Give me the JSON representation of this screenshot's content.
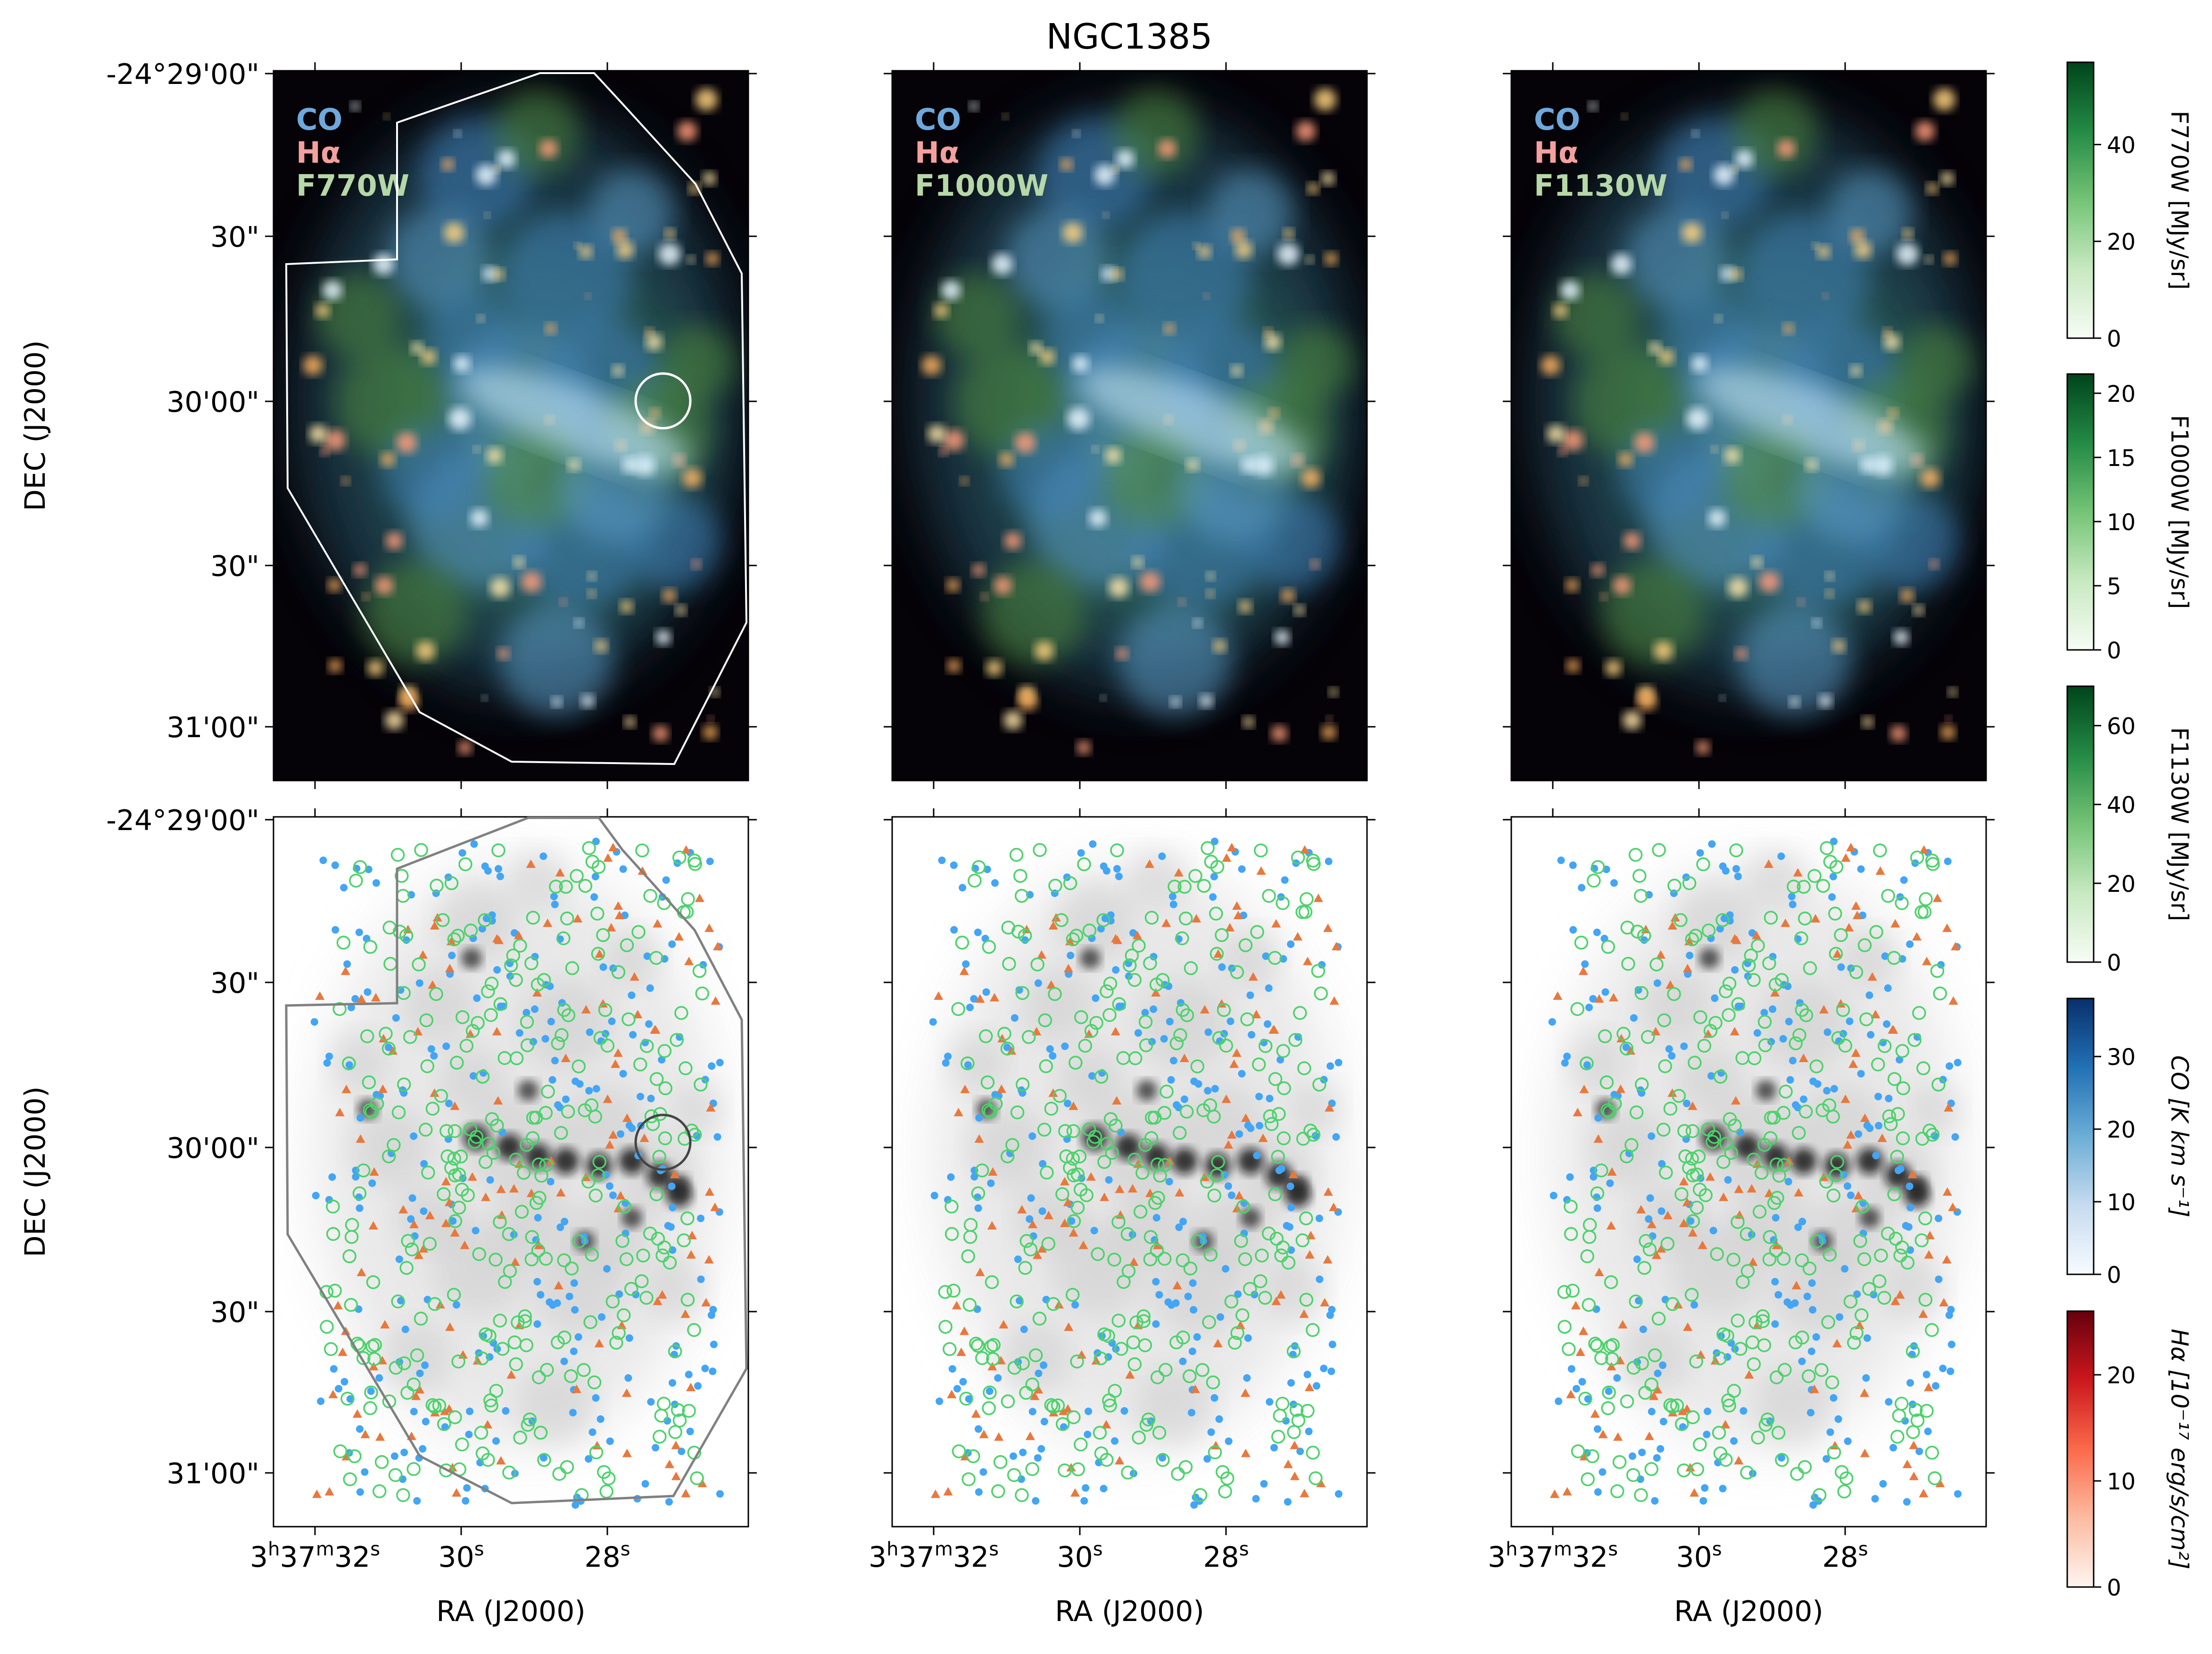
{
  "figure": {
    "title": "NGC1385"
  },
  "rgb_panels": [
    {
      "labels": [
        "CO",
        "Hα",
        "F770W"
      ]
    },
    {
      "labels": [
        "CO",
        "Hα",
        "F1000W"
      ]
    },
    {
      "labels": [
        "CO",
        "Hα",
        "F1130W"
      ]
    }
  ],
  "label_colors": {
    "co": "#6fa8dc",
    "halpha": "#f4a0a0",
    "mir": "#b6d7a8"
  },
  "axes": {
    "dec_ticks_top": [
      "-24°29'00\"",
      "30\"",
      "30'00\"",
      "30\"",
      "31'00\""
    ],
    "dec_ticks_bottom": [
      "-24°29'00\"",
      "30\"",
      "30'00\"",
      "30\"",
      "31'00\""
    ],
    "ra_ticks": [
      "3h37m32s",
      "30s",
      "28s"
    ],
    "ra_tick_parts": [
      {
        "h": "3",
        "m": "37",
        "s": "32"
      },
      {
        "s": "30"
      },
      {
        "s": "28"
      }
    ],
    "xlabel": "RA (J2000)",
    "ylabel": "DEC (J2000)"
  },
  "colorbars": [
    {
      "label": "F770W [MJy/sr]",
      "ticks": [
        "0",
        "20",
        "40"
      ],
      "tick_values": [
        0,
        20,
        40
      ],
      "vmax": 57,
      "cmap": "Greens"
    },
    {
      "label": "F1000W [MJy/sr]",
      "ticks": [
        "0",
        "5",
        "10",
        "15",
        "20"
      ],
      "tick_values": [
        0,
        5,
        10,
        15,
        20
      ],
      "vmax": 21.5,
      "cmap": "Greens"
    },
    {
      "label": "F1130W [MJy/sr]",
      "ticks": [
        "0",
        "20",
        "40",
        "60"
      ],
      "tick_values": [
        0,
        20,
        40,
        60
      ],
      "vmax": 70,
      "cmap": "Greens"
    },
    {
      "label": "CO [K km s⁻¹]",
      "ticks": [
        "0",
        "10",
        "20",
        "30"
      ],
      "tick_values": [
        0,
        10,
        20,
        30
      ],
      "vmax": 38,
      "cmap": "Blues"
    },
    {
      "label": "Hα [10⁻¹⁷ erg/s/cm²]",
      "ticks": [
        "0",
        "10",
        "20"
      ],
      "tick_values": [
        0,
        10,
        20
      ],
      "vmax": 26,
      "cmap": "Reds"
    }
  ],
  "colors": {
    "co_marker": "#42a5f5",
    "halpha_marker": "#e8783c",
    "mir_marker": "#4cd26b",
    "footprint_top": "#ffffff",
    "footprint_bottom": "#808080"
  }
}
